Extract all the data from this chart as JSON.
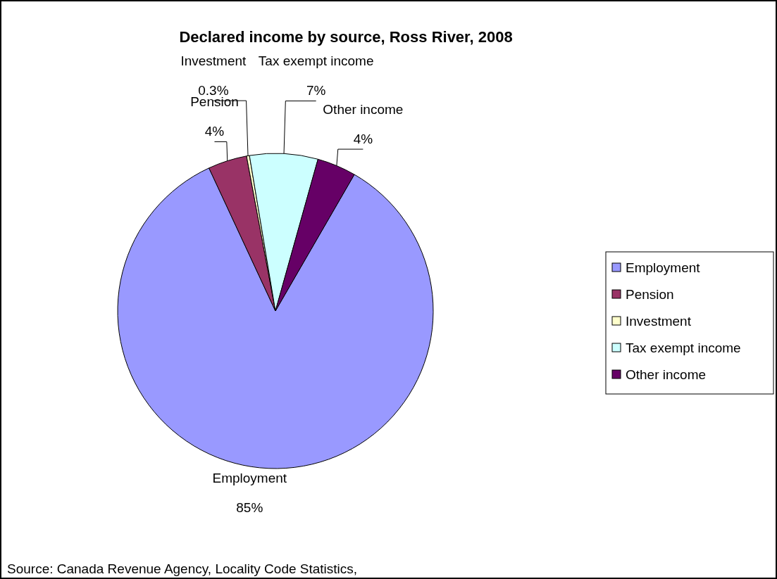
{
  "chart_data": {
    "type": "pie",
    "title": "Declared income by source, Ross River, 2008",
    "categories": [
      "Employment",
      "Pension",
      "Investment",
      "Tax exempt income",
      "Other income"
    ],
    "values": [
      85,
      4,
      0.3,
      7,
      4
    ],
    "value_labels": [
      "85%",
      "4%",
      "0.3%",
      "7%",
      "4%"
    ],
    "colors": [
      "#9999ff",
      "#993366",
      "#ffffcc",
      "#ccffff",
      "#660066"
    ],
    "legend": "right",
    "annotations": [
      "Source: Canada Revenue Agency, Locality Code Statistics,"
    ]
  }
}
